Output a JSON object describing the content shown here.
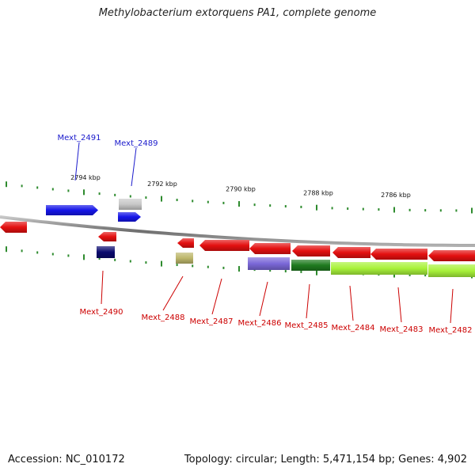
{
  "title": "Methylobacterium extorquens PA1, complete genome",
  "footer": {
    "accession": "Accession: NC_010172",
    "summary": "Topology: circular; Length: 5,471,154 bp; Genes: 4,902"
  },
  "colors": {
    "backbone": "#8a8a8a",
    "tick": "#2e8b2e",
    "label_top": "#1a1acc",
    "label_bottom": "#cc0000"
  },
  "ticks": [
    "2794 kbp",
    "2792 kbp",
    "2790 kbp",
    "2788 kbp",
    "2786 kbp"
  ],
  "genes": [
    {
      "name": "Mext_2491",
      "strand": "+",
      "color": "#1515e8",
      "label_side": "top"
    },
    {
      "name": "Mext_2489",
      "strand": "+",
      "color": "#1515e8",
      "label_side": "top"
    },
    {
      "name": "Mext_2490",
      "strand": "-",
      "color": "#e41010",
      "label_side": "bottom"
    },
    {
      "name": "Mext_2488",
      "strand": "-",
      "color": "#e41010",
      "label_side": "bottom"
    },
    {
      "name": "Mext_2487",
      "strand": "-",
      "color": "#e41010",
      "label_side": "bottom"
    },
    {
      "name": "Mext_2486",
      "strand": "-",
      "color": "#e41010",
      "label_side": "bottom"
    },
    {
      "name": "Mext_2485",
      "strand": "-",
      "color": "#e41010",
      "label_side": "bottom"
    },
    {
      "name": "Mext_2484",
      "strand": "-",
      "color": "#e41010",
      "label_side": "bottom"
    },
    {
      "name": "Mext_2483",
      "strand": "-",
      "color": "#e41010",
      "label_side": "bottom"
    },
    {
      "name": "Mext_2482",
      "strand": "-",
      "color": "#e41010",
      "label_side": "bottom"
    }
  ],
  "features": [
    {
      "name": "feature-grey",
      "color": "#c8c8c8"
    },
    {
      "name": "feature-navy",
      "color": "#0a0a6e"
    },
    {
      "name": "feature-khaki",
      "color": "#bdb76b"
    },
    {
      "name": "feature-slateblue",
      "color": "#7b68d8"
    },
    {
      "name": "feature-darkgreen",
      "color": "#1f7a1f"
    },
    {
      "name": "feature-lime-1",
      "color": "#a8f23a"
    },
    {
      "name": "feature-lime-2",
      "color": "#a8f23a"
    }
  ]
}
